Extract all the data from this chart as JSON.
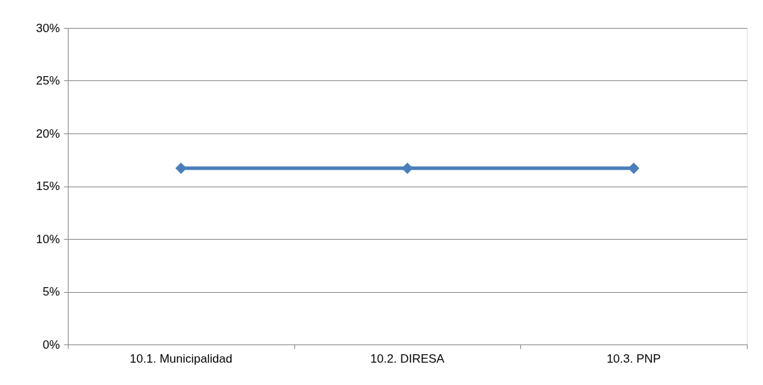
{
  "chart_data": {
    "type": "line",
    "categories": [
      "10.1. Municipalidad",
      "10.2. DIRESA",
      "10.3. PNP"
    ],
    "series": [
      {
        "color": "#4a7ebb",
        "values": [
          16.7,
          16.7,
          16.7
        ]
      }
    ],
    "ylim": [
      0,
      30
    ],
    "yticks": [
      {
        "value": 0,
        "label": "0%"
      },
      {
        "value": 5,
        "label": "5%"
      },
      {
        "value": 10,
        "label": "10%"
      },
      {
        "value": 15,
        "label": "15%"
      },
      {
        "value": 20,
        "label": "20%"
      },
      {
        "value": 25,
        "label": "25%"
      },
      {
        "value": 30,
        "label": "30%"
      }
    ],
    "grid": "y",
    "legend": false,
    "marker": "diamond",
    "line_style": "solid"
  }
}
